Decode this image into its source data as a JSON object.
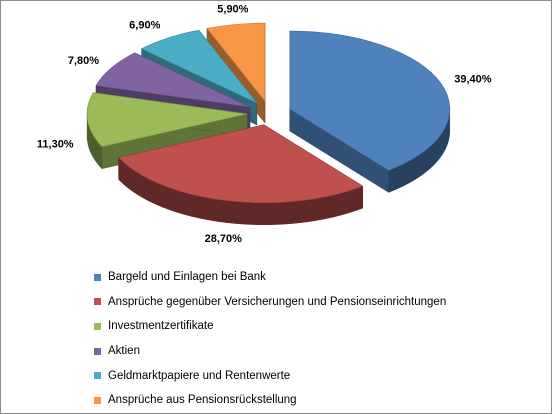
{
  "chart_data": {
    "type": "pie",
    "series": [
      {
        "name": "Bargeld und Einlagen bei Bank",
        "value": 39.4,
        "label": "39,40%",
        "color": "#4F81BD"
      },
      {
        "name": "Ansprüche gegenüber Versicherungen und Pensionseinrichtungen",
        "value": 28.7,
        "label": "28,70%",
        "color": "#C0504D"
      },
      {
        "name": "Investmentzertifikate",
        "value": 11.3,
        "label": "11,30%",
        "color": "#9BBB59"
      },
      {
        "name": "Aktien",
        "value": 7.8,
        "label": "7,80%",
        "color": "#8064A2"
      },
      {
        "name": "Geldmarktpapiere und Rentenwerte",
        "value": 6.9,
        "label": "6,90%",
        "color": "#4BACC6"
      },
      {
        "name": "Ansprüche aus Pensionsrückstellung",
        "value": 5.9,
        "label": "5,90%",
        "color": "#F79646"
      }
    ],
    "legend_position": "bottom",
    "style": "3d-exploded"
  }
}
